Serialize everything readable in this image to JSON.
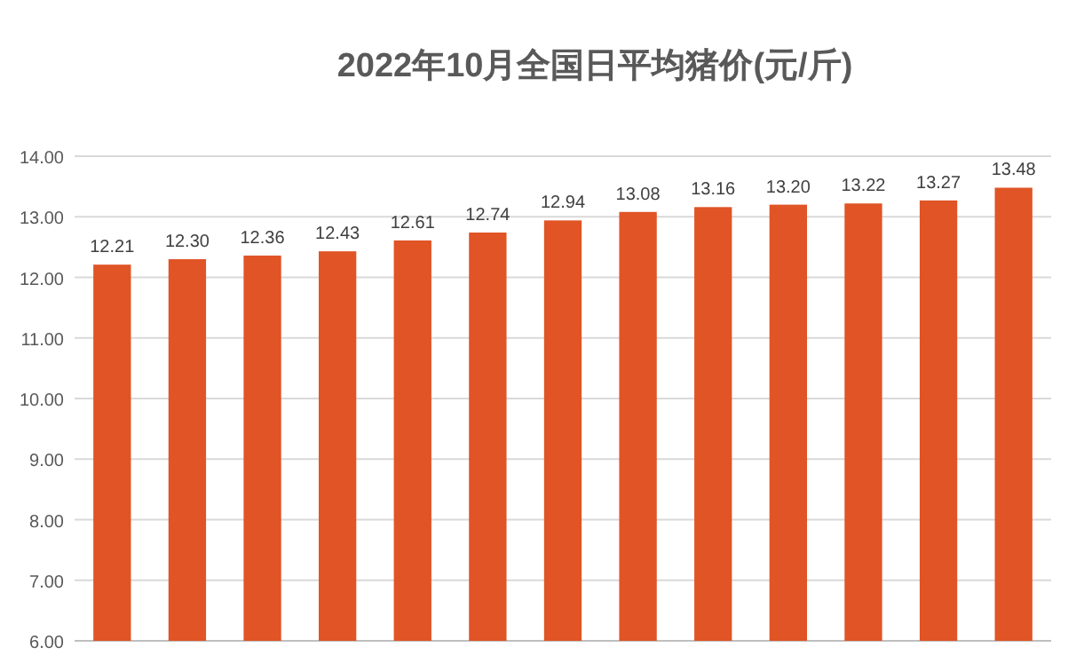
{
  "chart_data": {
    "type": "bar",
    "title": "2022年10月全国日平均猪价(元/斤)",
    "categories": [
      null,
      null,
      null,
      null,
      null,
      null,
      null,
      null,
      null,
      null,
      null,
      null,
      null
    ],
    "values": [
      12.21,
      12.3,
      12.36,
      12.43,
      12.61,
      12.74,
      12.94,
      13.08,
      13.16,
      13.2,
      13.22,
      13.27,
      13.48
    ],
    "value_labels": [
      "12.21",
      "12.30",
      "12.36",
      "12.43",
      "12.61",
      "12.74",
      "12.94",
      "13.08",
      "13.16",
      "13.20",
      "13.22",
      "13.27",
      "13.48"
    ],
    "color": "#e05426",
    "ylim": [
      6,
      14
    ],
    "yticks": [
      {
        "value": 6,
        "label": "6.00"
      },
      {
        "value": 7,
        "label": "7.00"
      },
      {
        "value": 8,
        "label": "8.00"
      },
      {
        "value": 9,
        "label": "9.00"
      },
      {
        "value": 10,
        "label": "10.00"
      },
      {
        "value": 11,
        "label": "11.00"
      },
      {
        "value": 12,
        "label": "12.00"
      },
      {
        "value": 13,
        "label": "13.00"
      },
      {
        "value": 14,
        "label": "14.00"
      }
    ],
    "grid": "y"
  }
}
